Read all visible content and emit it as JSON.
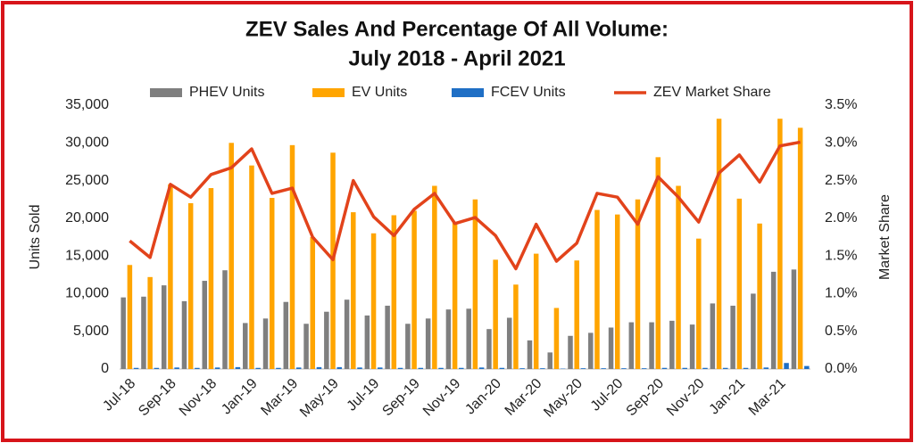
{
  "chart_data": {
    "type": "bar-line",
    "title": [
      "ZEV Sales And Percentage Of All Volume:",
      "July 2018 - April 2021"
    ],
    "y_label": "Units Sold",
    "y2_label": "Market Share",
    "categories": [
      "Jul-18",
      null,
      "Sep-18",
      null,
      "Nov-18",
      null,
      "Jan-19",
      null,
      "Mar-19",
      null,
      "May-19",
      null,
      "Jul-19",
      null,
      "Sep-19",
      null,
      "Nov-19",
      null,
      "Jan-20",
      null,
      "Mar-20",
      null,
      "May-20",
      null,
      "Jul-20",
      null,
      "Sep-20",
      null,
      "Nov-20",
      null,
      "Jan-21",
      null,
      "Mar-21",
      null
    ],
    "series": [
      {
        "name": "PHEV Units",
        "color": "#7f7f7f",
        "type": "bar",
        "values": [
          9500,
          9600,
          11100,
          9000,
          11700,
          13100,
          6100,
          6700,
          8900,
          6000,
          7600,
          9200,
          7100,
          8400,
          6000,
          6700,
          7900,
          8000,
          5300,
          6800,
          3800,
          2200,
          4400,
          4800,
          5500,
          6200,
          6200,
          6400,
          5900,
          8700,
          8400,
          10000,
          12900,
          13200
        ]
      },
      {
        "name": "EV Units",
        "color": "#ffa500",
        "type": "bar",
        "values": [
          13800,
          12200,
          24500,
          22000,
          24000,
          30000,
          27000,
          22700,
          29700,
          17500,
          28700,
          20800,
          18000,
          20400,
          21000,
          24300,
          19500,
          22500,
          14500,
          11200,
          15300,
          8100,
          14400,
          21100,
          20500,
          22500,
          28100,
          24300,
          17300,
          33200,
          22600,
          19300,
          33200,
          32000
        ]
      },
      {
        "name": "FCEV Units",
        "color": "#1f6fc5",
        "type": "bar",
        "values": [
          150,
          150,
          200,
          150,
          200,
          250,
          150,
          150,
          200,
          250,
          250,
          200,
          200,
          150,
          150,
          150,
          150,
          200,
          150,
          100,
          100,
          50,
          100,
          100,
          100,
          100,
          150,
          150,
          150,
          150,
          150,
          200,
          800,
          400
        ]
      },
      {
        "name": "ZEV Market Share",
        "color": "#e2431b",
        "type": "line",
        "axis": "y2",
        "values": [
          1.7,
          1.48,
          2.45,
          2.28,
          2.58,
          2.67,
          2.92,
          2.33,
          2.4,
          1.75,
          1.45,
          2.5,
          2.02,
          1.77,
          2.12,
          2.33,
          1.93,
          2.01,
          1.77,
          1.33,
          1.92,
          1.43,
          1.67,
          2.33,
          2.28,
          1.92,
          2.55,
          2.28,
          1.95,
          2.6,
          2.84,
          2.48,
          2.96,
          3.01
        ]
      }
    ],
    "ylim": [
      0,
      35000
    ],
    "yticks": [
      0,
      {
        "value": 5000,
        "label": "5,000"
      },
      {
        "value": 10000,
        "label": "10,000"
      },
      {
        "value": 15000,
        "label": "15,000"
      },
      {
        "value": 20000,
        "label": "20,000"
      },
      {
        "value": 25000,
        "label": "25,000"
      },
      {
        "value": 30000,
        "label": "30,000"
      },
      {
        "value": 35000,
        "label": "35,000"
      }
    ],
    "y2lim": [
      0,
      3.5
    ],
    "y2ticks": [
      {
        "value": 0,
        "label": "0.0%"
      },
      {
        "value": 0.5,
        "label": "0.5%"
      },
      {
        "value": 1,
        "label": "1.0%"
      },
      {
        "value": 1.5,
        "label": "1.5%"
      },
      {
        "value": 2,
        "label": "2.0%"
      },
      {
        "value": 2.5,
        "label": "2.5%"
      },
      {
        "value": 3,
        "label": "3.0%"
      },
      {
        "value": 3.5,
        "label": "3.5%"
      }
    ],
    "grid": false,
    "legend": "top"
  }
}
